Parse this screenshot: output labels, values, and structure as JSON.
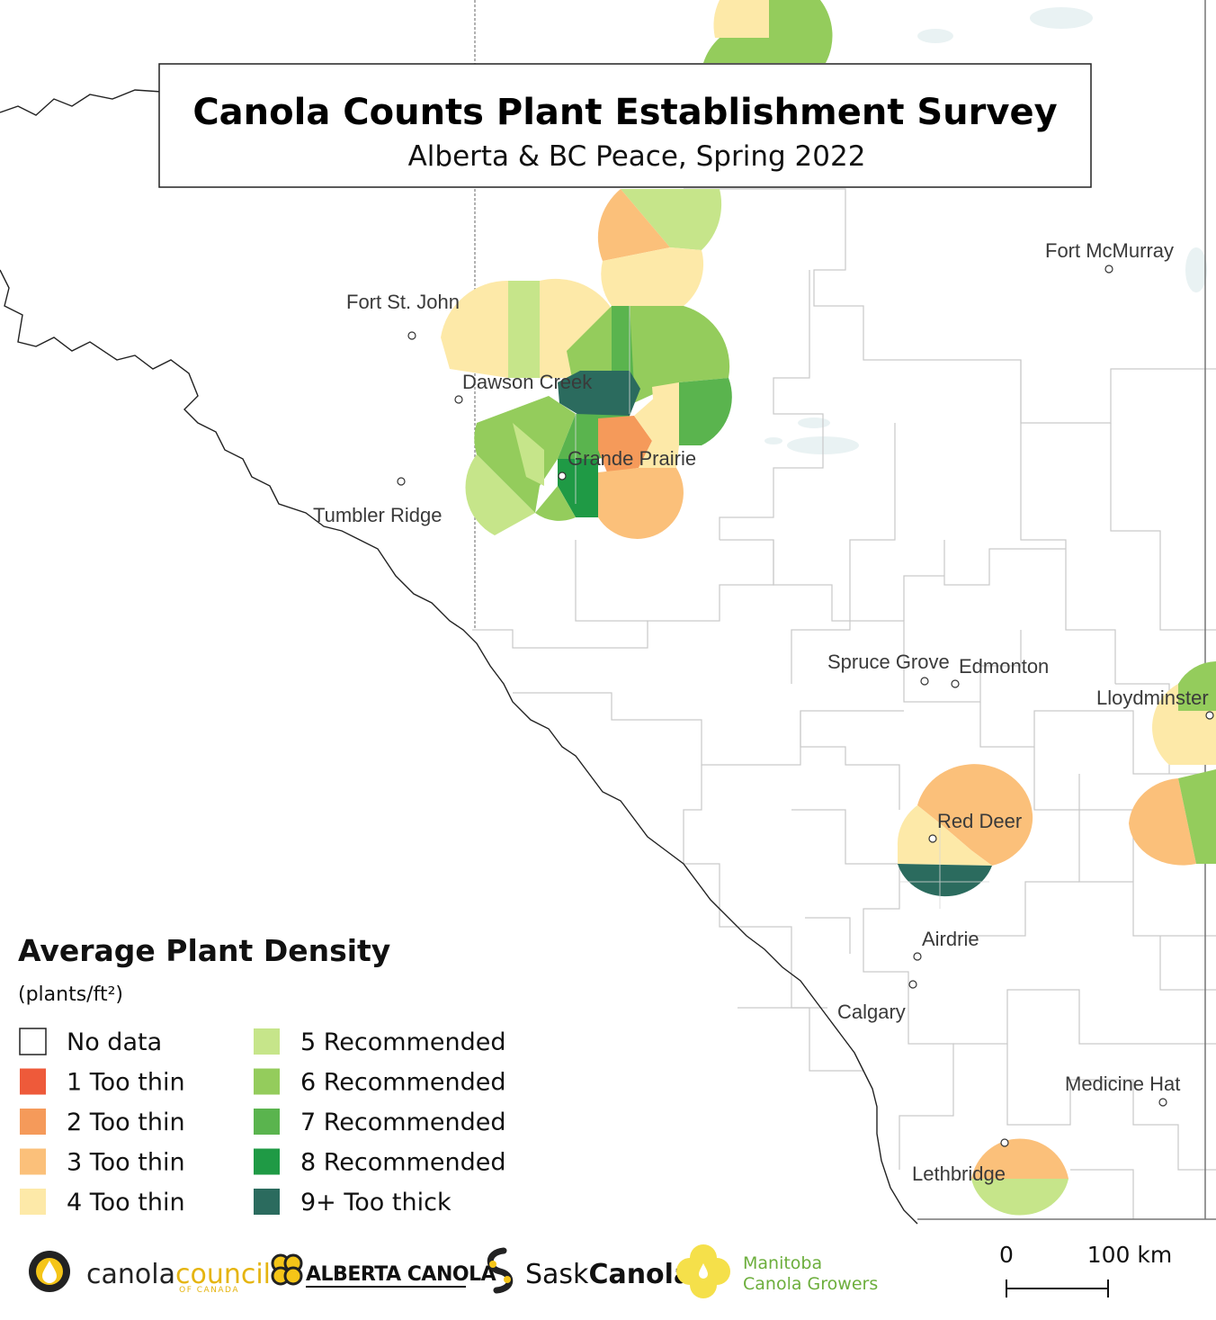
{
  "title": "Canola Counts Plant Establishment Survey",
  "subtitle": "Alberta & BC Peace, Spring 2022",
  "legend": {
    "title": "Average Plant Density",
    "unit": "(plants/ft²)",
    "items": [
      {
        "label": "No data",
        "color": "#ffffff"
      },
      {
        "label": "1 Too thin",
        "color": "#ee5a3a"
      },
      {
        "label": "2 Too thin",
        "color": "#f59a5a"
      },
      {
        "label": "3 Too thin",
        "color": "#fbc07a"
      },
      {
        "label": "4 Too thin",
        "color": "#fde9a8"
      },
      {
        "label": "5 Recommended",
        "color": "#c6e58a"
      },
      {
        "label": "6 Recommended",
        "color": "#94cc5c"
      },
      {
        "label": "7 Recommended",
        "color": "#5ab44e"
      },
      {
        "label": "8 Recommended",
        "color": "#1f9a45"
      },
      {
        "label": "9+ Too thick",
        "color": "#2b6b5e"
      }
    ]
  },
  "cities": [
    {
      "name": "Fort McMurray"
    },
    {
      "name": "Fort St. John"
    },
    {
      "name": "Dawson Creek"
    },
    {
      "name": "Grande Prairie"
    },
    {
      "name": "Tumbler Ridge"
    },
    {
      "name": "Spruce Grove"
    },
    {
      "name": "Edmonton"
    },
    {
      "name": "Lloydminster"
    },
    {
      "name": "Red Deer"
    },
    {
      "name": "Airdrie"
    },
    {
      "name": "Calgary"
    },
    {
      "name": "Medicine Hat"
    },
    {
      "name": "Lethbridge"
    }
  ],
  "scale_bar": {
    "start": "0",
    "end": "100 km"
  },
  "logos": {
    "canola_council": {
      "part1": "canola",
      "part2": "council",
      "sub": "OF CANADA"
    },
    "alberta_canola": {
      "text": "ALBERTA CANOLA"
    },
    "sask_canola": {
      "part1": "Sask",
      "part2": "Canola"
    },
    "manitoba": {
      "line1": "Manitoba",
      "line2": "Canola Growers"
    }
  }
}
